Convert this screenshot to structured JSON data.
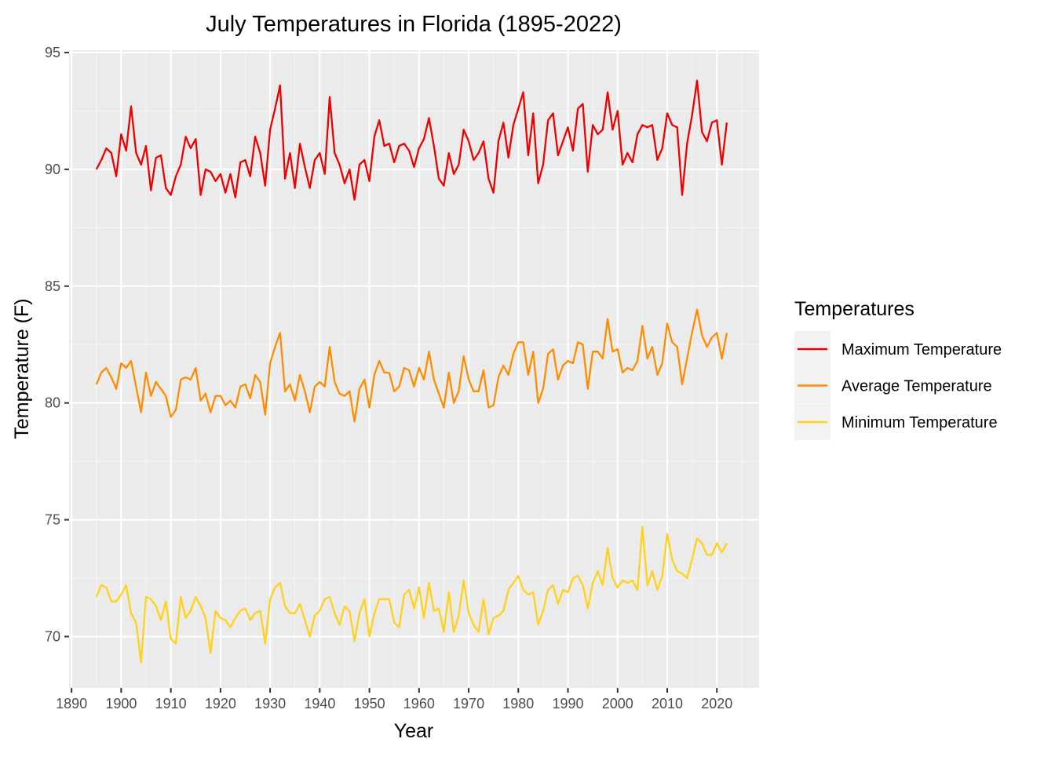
{
  "chart_data": {
    "type": "line",
    "title": "July Temperatures in Florida (1895-2022)",
    "xlabel": "Year",
    "ylabel": "Temperature (F)",
    "xlim": [
      1889.5,
      2028.5
    ],
    "ylim": [
      67.8,
      95.1
    ],
    "x_ticks": [
      1890,
      1900,
      1910,
      1920,
      1930,
      1940,
      1950,
      1960,
      1970,
      1980,
      1990,
      2000,
      2010,
      2020
    ],
    "y_ticks": [
      70,
      75,
      80,
      85,
      90,
      95
    ],
    "grid": true,
    "legend": {
      "title": "Temperatures",
      "placement": "right"
    },
    "x": [
      1895,
      1896,
      1897,
      1898,
      1899,
      1900,
      1901,
      1902,
      1903,
      1904,
      1905,
      1906,
      1907,
      1908,
      1909,
      1910,
      1911,
      1912,
      1913,
      1914,
      1915,
      1916,
      1917,
      1918,
      1919,
      1920,
      1921,
      1922,
      1923,
      1924,
      1925,
      1926,
      1927,
      1928,
      1929,
      1930,
      1931,
      1932,
      1933,
      1934,
      1935,
      1936,
      1937,
      1938,
      1939,
      1940,
      1941,
      1942,
      1943,
      1944,
      1945,
      1946,
      1947,
      1948,
      1949,
      1950,
      1951,
      1952,
      1953,
      1954,
      1955,
      1956,
      1957,
      1958,
      1959,
      1960,
      1961,
      1962,
      1963,
      1964,
      1965,
      1966,
      1967,
      1968,
      1969,
      1970,
      1971,
      1972,
      1973,
      1974,
      1975,
      1976,
      1977,
      1978,
      1979,
      1980,
      1981,
      1982,
      1983,
      1984,
      1985,
      1986,
      1987,
      1988,
      1989,
      1990,
      1991,
      1992,
      1993,
      1994,
      1995,
      1996,
      1997,
      1998,
      1999,
      2000,
      2001,
      2002,
      2003,
      2004,
      2005,
      2006,
      2007,
      2008,
      2009,
      2010,
      2011,
      2012,
      2013,
      2014,
      2015,
      2016,
      2017,
      2018,
      2019,
      2020,
      2021,
      2022
    ],
    "series": [
      {
        "name": "Maximum Temperature",
        "color": "#ee0000",
        "values": [
          90.0,
          90.4,
          90.9,
          90.7,
          89.7,
          91.5,
          90.8,
          92.7,
          90.7,
          90.2,
          91.0,
          89.1,
          90.5,
          90.6,
          89.2,
          88.9,
          89.7,
          90.2,
          91.4,
          90.9,
          91.3,
          88.9,
          90.0,
          89.9,
          89.5,
          89.8,
          89.0,
          89.8,
          88.8,
          90.3,
          90.4,
          89.7,
          91.4,
          90.7,
          89.3,
          91.7,
          92.6,
          93.6,
          89.6,
          90.7,
          89.2,
          91.1,
          90.1,
          89.2,
          90.4,
          90.7,
          89.8,
          93.1,
          90.7,
          90.2,
          89.4,
          90.0,
          88.7,
          90.2,
          90.4,
          89.5,
          91.4,
          92.1,
          91.0,
          91.1,
          90.3,
          91.0,
          91.1,
          90.8,
          90.1,
          90.9,
          91.3,
          92.2,
          91.0,
          89.6,
          89.3,
          90.7,
          89.8,
          90.2,
          91.7,
          91.2,
          90.4,
          90.7,
          91.2,
          89.6,
          89.0,
          91.2,
          92.0,
          90.5,
          91.9,
          92.6,
          93.3,
          90.6,
          92.4,
          89.4,
          90.2,
          92.1,
          92.4,
          90.6,
          91.2,
          91.8,
          90.8,
          92.6,
          92.8,
          89.9,
          91.9,
          91.5,
          91.7,
          93.3,
          91.7,
          92.5,
          90.2,
          90.7,
          90.3,
          91.5,
          91.9,
          91.8,
          91.9,
          90.4,
          90.9,
          92.4,
          91.9,
          91.8,
          88.9,
          91.1,
          92.3,
          93.8,
          91.6,
          91.2,
          92.0,
          92.1,
          90.2,
          92.0
        ]
      },
      {
        "name": "Average Temperature",
        "color": "#ff8c00",
        "values": [
          80.8,
          81.3,
          81.5,
          81.1,
          80.6,
          81.7,
          81.5,
          81.8,
          80.7,
          79.6,
          81.3,
          80.3,
          80.9,
          80.6,
          80.3,
          79.4,
          79.7,
          81.0,
          81.1,
          81.0,
          81.5,
          80.1,
          80.4,
          79.6,
          80.3,
          80.3,
          79.9,
          80.1,
          79.8,
          80.7,
          80.8,
          80.2,
          81.2,
          80.9,
          79.5,
          81.7,
          82.4,
          83.0,
          80.5,
          80.8,
          80.1,
          81.2,
          80.5,
          79.6,
          80.7,
          80.9,
          80.7,
          82.4,
          80.9,
          80.4,
          80.3,
          80.5,
          79.2,
          80.6,
          81.0,
          79.8,
          81.2,
          81.8,
          81.3,
          81.3,
          80.5,
          80.7,
          81.5,
          81.4,
          80.7,
          81.5,
          81.0,
          82.2,
          81.0,
          80.4,
          79.8,
          81.3,
          80.0,
          80.5,
          82.0,
          81.0,
          80.5,
          80.5,
          81.4,
          79.8,
          79.9,
          81.1,
          81.6,
          81.2,
          82.1,
          82.6,
          82.6,
          81.2,
          82.2,
          80.0,
          80.6,
          82.1,
          82.3,
          81.0,
          81.6,
          81.8,
          81.7,
          82.6,
          82.5,
          80.6,
          82.2,
          82.2,
          81.9,
          83.6,
          82.2,
          82.3,
          81.3,
          81.5,
          81.4,
          81.8,
          83.3,
          81.9,
          82.4,
          81.2,
          81.7,
          83.4,
          82.6,
          82.4,
          80.8,
          81.9,
          83.0,
          84.0,
          82.9,
          82.4,
          82.8,
          83.0,
          81.9,
          83.0
        ]
      },
      {
        "name": "Minimum Temperature",
        "color": "#ffd11a",
        "values": [
          71.7,
          72.2,
          72.1,
          71.5,
          71.5,
          71.8,
          72.2,
          71.0,
          70.6,
          68.9,
          71.7,
          71.6,
          71.3,
          70.7,
          71.5,
          69.9,
          69.7,
          71.7,
          70.8,
          71.1,
          71.7,
          71.3,
          70.8,
          69.3,
          71.1,
          70.8,
          70.7,
          70.4,
          70.8,
          71.1,
          71.2,
          70.7,
          71.0,
          71.1,
          69.7,
          71.6,
          72.1,
          72.3,
          71.3,
          71.0,
          71.0,
          71.4,
          70.7,
          70.0,
          70.9,
          71.1,
          71.6,
          71.7,
          71.0,
          70.5,
          71.3,
          71.1,
          69.8,
          71.0,
          71.6,
          70.0,
          71.0,
          71.6,
          71.6,
          71.6,
          70.6,
          70.4,
          71.8,
          72.0,
          71.2,
          72.1,
          70.8,
          72.3,
          71.1,
          71.2,
          70.2,
          71.9,
          70.2,
          70.9,
          72.4,
          71.0,
          70.5,
          70.2,
          71.6,
          70.1,
          70.8,
          70.9,
          71.1,
          72.0,
          72.3,
          72.6,
          72.0,
          71.8,
          71.9,
          70.5,
          71.1,
          72.0,
          72.2,
          71.4,
          72.0,
          71.9,
          72.5,
          72.6,
          72.2,
          71.2,
          72.3,
          72.8,
          72.2,
          73.8,
          72.5,
          72.1,
          72.4,
          72.3,
          72.4,
          72.0,
          74.7,
          72.2,
          72.8,
          72.0,
          72.6,
          74.4,
          73.3,
          72.8,
          72.7,
          72.5,
          73.3,
          74.2,
          74.0,
          73.5,
          73.5,
          74.0,
          73.6,
          74.0
        ]
      }
    ]
  }
}
